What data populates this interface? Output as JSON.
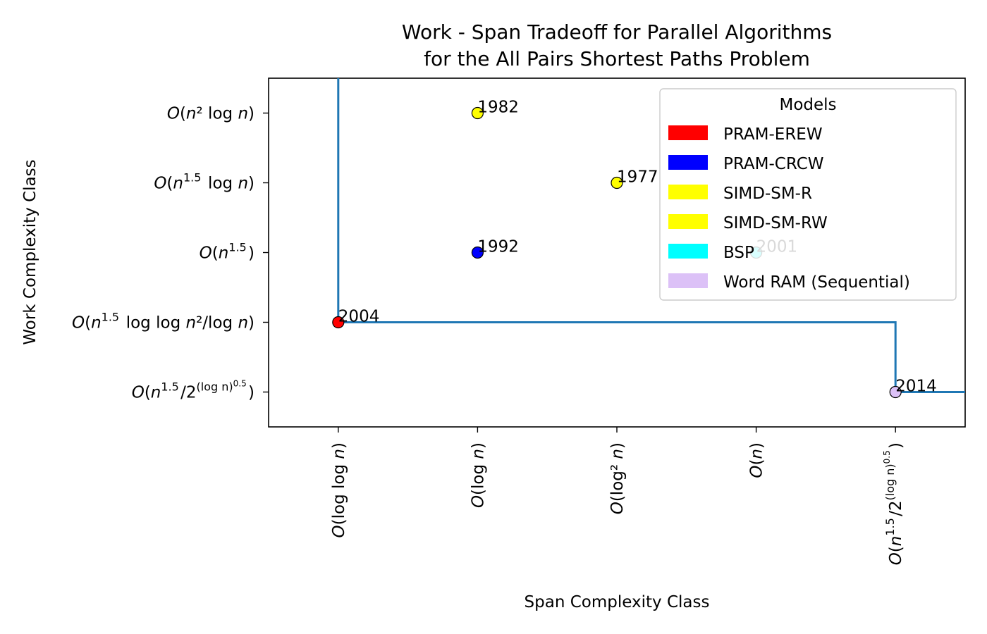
{
  "chart_data": {
    "type": "scatter",
    "title": "Work - Span Tradeoff for Parallel Algorithms",
    "subtitle": "for the All Pairs Shortest Paths Problem",
    "xlabel": "Span Complexity Class",
    "ylabel": "Work Complexity Class",
    "x_categories": [
      {
        "label": "O(log log n)"
      },
      {
        "label": "O(log n)"
      },
      {
        "label": "O(log² n)"
      },
      {
        "label": "O(n)"
      },
      {
        "label": "O(n^1.5/2^((log n)^0.5))"
      }
    ],
    "y_categories": [
      {
        "label": "O(n^1.5/2^((log n)^0.5))"
      },
      {
        "label": "O(n^1.5 log log n²/log n)"
      },
      {
        "label": "O(n^1.5)"
      },
      {
        "label": "O(n^1.5 log n)"
      },
      {
        "label": "O(n² log n)"
      }
    ],
    "xlim": [
      -0.5,
      4.5
    ],
    "ylim": [
      -0.5,
      4.5
    ],
    "points": [
      {
        "label": "1982",
        "x": 1,
        "y": 4,
        "model": "SIMD-SM-R",
        "color": "#ffff00"
      },
      {
        "label": "1977",
        "x": 2,
        "y": 3,
        "model": "SIMD-SM-RW",
        "color": "#ffff00"
      },
      {
        "label": "1992",
        "x": 1,
        "y": 2,
        "model": "PRAM-CRCW",
        "color": "#0000ff"
      },
      {
        "label": "2001",
        "x": 3,
        "y": 2,
        "model": "BSP",
        "color": "#00ffff"
      },
      {
        "label": "2004",
        "x": 0,
        "y": 1,
        "model": "PRAM-EREW",
        "color": "#ff0000"
      },
      {
        "label": "2014",
        "x": 4,
        "y": 0,
        "model": "Word RAM (Sequential)",
        "color": "#dcc1f7"
      }
    ],
    "frontier": {
      "color": "#1f77b4",
      "path": [
        [
          0,
          4.5
        ],
        [
          0,
          1
        ],
        [
          4,
          1
        ],
        [
          4,
          0
        ],
        [
          4.5,
          0
        ]
      ]
    },
    "legend": {
      "title": "Models",
      "placement": "top-right",
      "entries": [
        {
          "label": "PRAM-EREW",
          "color": "#ff0000"
        },
        {
          "label": "PRAM-CRCW",
          "color": "#0000ff"
        },
        {
          "label": "SIMD-SM-R",
          "color": "#ffff00"
        },
        {
          "label": "SIMD-SM-RW",
          "color": "#ffff00"
        },
        {
          "label": "BSP",
          "color": "#00ffff"
        },
        {
          "label": "Word RAM (Sequential)",
          "color": "#dcc1f7"
        }
      ]
    },
    "grid": false
  }
}
